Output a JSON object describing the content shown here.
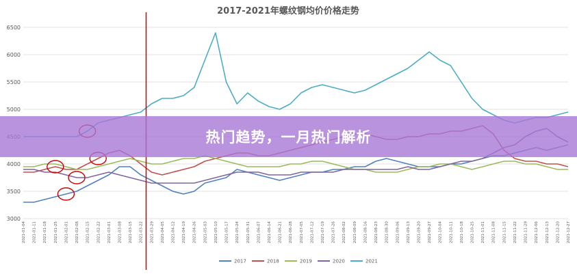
{
  "banner": {
    "text": "热门趋势，一月热门解析"
  },
  "colors": {
    "2017": "#4f81bd",
    "2018": "#c0504d",
    "2019": "#9bbb59",
    "2020": "#8064a2",
    "2021": "#4bacc6",
    "marker_line": "#cc0000",
    "circle": "#cc0000",
    "banner": "#a878d6"
  },
  "chart_data": {
    "type": "line",
    "title": "2017-2021年螺纹钢均价价格走势",
    "ylim": [
      3000,
      6500
    ],
    "yticks": [
      3000,
      3500,
      4000,
      4500,
      5000,
      5500,
      6000,
      6500
    ],
    "grid": true,
    "legend_position": "bottom",
    "x_tick_labels": [
      "2021-01-04",
      "2021-01-11",
      "2021-01-18",
      "2021-01-25",
      "2021-02-01",
      "2021-02-08",
      "2021-02-15",
      "2021-02-22",
      "2021-03-01",
      "2021-03-08",
      "2021-03-15",
      "2021-03-22",
      "2021-03-29",
      "2021-04-05",
      "2021-04-12",
      "2021-04-19",
      "2021-04-26",
      "2021-05-03",
      "2021-05-10",
      "2021-05-17",
      "2021-05-24",
      "2021-05-31",
      "2021-06-07",
      "2021-06-14",
      "2021-06-21",
      "2021-06-28",
      "2021-07-05",
      "2021-07-12",
      "2021-07-19",
      "2021-07-26",
      "2021-08-02",
      "2021-08-09",
      "2021-08-16",
      "2021-08-23",
      "2021-08-30",
      "2021-09-06",
      "2021-09-13",
      "2021-09-20",
      "2021-09-27",
      "2021-10-04",
      "2021-10-11",
      "2021-10-18",
      "2021-10-25",
      "2021-11-01",
      "2021-11-08",
      "2021-11-15",
      "2021-11-22",
      "2021-11-29",
      "2021-12-06",
      "2021-12-13",
      "2021-12-20",
      "2021-12-27"
    ],
    "vline_category_index": 11.5,
    "series": [
      {
        "name": "2017",
        "values": [
          3300,
          3300,
          3350,
          3400,
          3450,
          3500,
          3600,
          3700,
          3800,
          3950,
          3950,
          3800,
          3700,
          3600,
          3500,
          3450,
          3500,
          3650,
          3700,
          3750,
          3900,
          3850,
          3800,
          3750,
          3700,
          3750,
          3800,
          3850,
          3850,
          3900,
          3900,
          3950,
          3950,
          4050,
          4100,
          4050,
          4000,
          3950,
          3950,
          3950,
          4000,
          4000,
          4050,
          4100,
          4150,
          4150,
          4200,
          4250,
          4300,
          4250,
          4300,
          4350
        ]
      },
      {
        "name": "2018",
        "values": [
          3850,
          3850,
          3900,
          3950,
          3900,
          3900,
          4000,
          4100,
          4200,
          4250,
          4150,
          4000,
          3850,
          3800,
          3850,
          3900,
          3950,
          4050,
          4100,
          4150,
          4200,
          4200,
          4150,
          4150,
          4200,
          4250,
          4300,
          4350,
          4400,
          4450,
          4500,
          4550,
          4550,
          4500,
          4450,
          4450,
          4500,
          4500,
          4550,
          4550,
          4600,
          4600,
          4650,
          4700,
          4550,
          4250,
          4100,
          4050,
          4050,
          4000,
          4000,
          3950
        ]
      },
      {
        "name": "2019",
        "values": [
          3950,
          3950,
          4000,
          4000,
          3950,
          3900,
          3900,
          3950,
          4000,
          4050,
          4100,
          4050,
          4000,
          4000,
          4050,
          4100,
          4100,
          4150,
          4100,
          4050,
          4000,
          3950,
          3950,
          3950,
          3950,
          4000,
          4000,
          4050,
          4050,
          4000,
          3950,
          3900,
          3900,
          3850,
          3850,
          3850,
          3900,
          3950,
          3950,
          4000,
          4000,
          3950,
          3900,
          3950,
          4000,
          4050,
          4050,
          4000,
          4000,
          3950,
          3900,
          3900
        ]
      },
      {
        "name": "2020",
        "values": [
          3900,
          3900,
          3850,
          3850,
          3800,
          3750,
          3750,
          3800,
          3850,
          3800,
          3750,
          3700,
          3650,
          3650,
          3650,
          3650,
          3650,
          3700,
          3750,
          3800,
          3850,
          3850,
          3850,
          3800,
          3800,
          3800,
          3850,
          3850,
          3850,
          3850,
          3900,
          3900,
          3900,
          3900,
          3900,
          3900,
          3950,
          3900,
          3900,
          3950,
          4000,
          4050,
          4050,
          4100,
          4200,
          4300,
          4350,
          4500,
          4600,
          4650,
          4500,
          4400
        ]
      },
      {
        "name": "2021",
        "values": [
          4500,
          4500,
          4500,
          4500,
          4500,
          4500,
          4600,
          4750,
          4800,
          4850,
          4900,
          4950,
          5100,
          5200,
          5200,
          5250,
          5400,
          5900,
          6400,
          5500,
          5100,
          5300,
          5150,
          5050,
          5000,
          5100,
          5300,
          5400,
          5450,
          5400,
          5350,
          5300,
          5350,
          5450,
          5550,
          5650,
          5750,
          5900,
          6050,
          5900,
          5800,
          5500,
          5200,
          5000,
          4900,
          4800,
          4750,
          4800,
          4850,
          4850,
          4900,
          4950
        ]
      }
    ],
    "annotation_circles": [
      {
        "series": "2021",
        "category_index": 6
      },
      {
        "series": "2018",
        "category_index": 7
      },
      {
        "series": "2018",
        "category_index": 3
      },
      {
        "series": "2017",
        "category_index": 4
      },
      {
        "series": "2020",
        "category_index": 5
      }
    ]
  }
}
